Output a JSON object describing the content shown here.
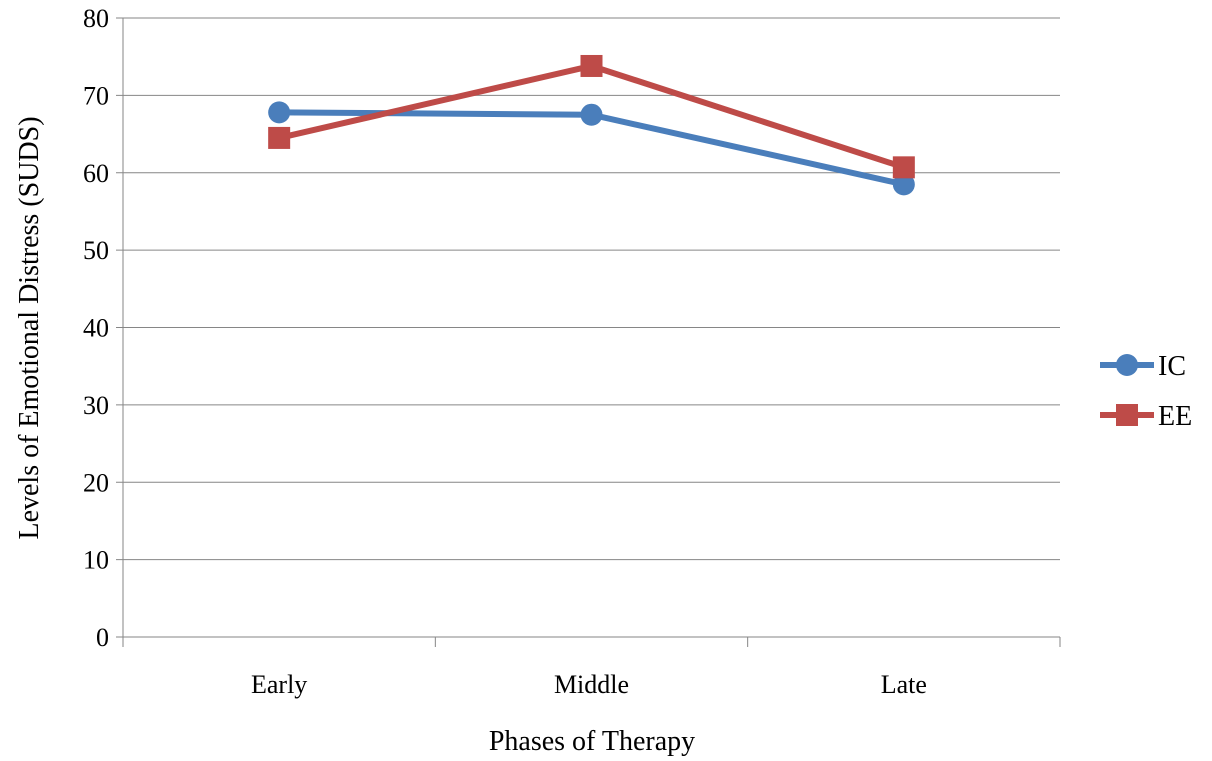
{
  "chart_data": {
    "type": "line",
    "title": "",
    "xlabel": "Phases of Therapy",
    "ylabel": "Levels of Emotional Distress (SUDS)",
    "categories": [
      "Early",
      "Middle",
      "Late"
    ],
    "ylim": [
      0,
      80
    ],
    "yticks": [
      0,
      10,
      20,
      30,
      40,
      50,
      60,
      70,
      80
    ],
    "grid": true,
    "legend": "right",
    "series": [
      {
        "name": "IC",
        "values": [
          67.8,
          67.5,
          58.5
        ],
        "color": "#4a7ebb",
        "marker": "circle"
      },
      {
        "name": "EE",
        "values": [
          64.5,
          73.8,
          60.7
        ],
        "color": "#be4b48",
        "marker": "square"
      }
    ]
  }
}
